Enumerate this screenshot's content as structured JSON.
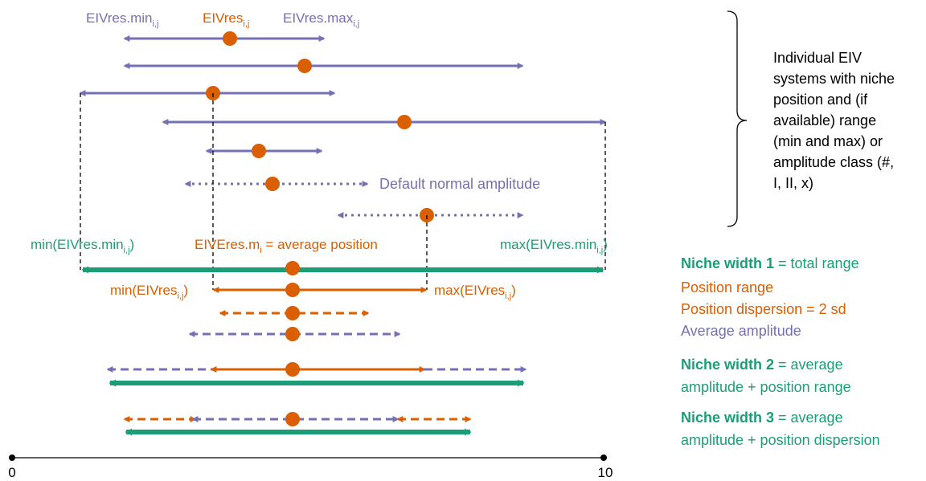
{
  "colors": {
    "purple": "#7570b3",
    "orange": "#d95f02",
    "green": "#1b9e77",
    "black": "#000000",
    "white": "#ffffff"
  },
  "labels": {
    "eiv_min_base": "EIVres.min",
    "eiv_min_sub": "i,j",
    "eiv_pos_base": "EIVres",
    "eiv_pos_sub": "i,j",
    "eiv_max_base": "EIVres.max",
    "eiv_max_sub": "i,j",
    "default_amplitude": "Default normal amplitude",
    "min_total_base": "min(EIVres.min",
    "min_total_sub": "i,j",
    "min_total_end": ")",
    "avg_base": "EIVEres.m",
    "avg_sub": "i",
    "avg_end": " = average position",
    "max_total_base": "max(EIVres.min",
    "max_total_sub": "i,j",
    "max_total_end": ")",
    "min_pos_base": "min(EIVres",
    "min_pos_sub": "i,j",
    "min_pos_end": ")",
    "max_pos_base": "max(EIVres",
    "max_pos_sub": "i,j",
    "max_pos_end": ")"
  },
  "brace_text": [
    "Individual EIV",
    "systems with niche",
    "position and (if",
    "available) range",
    "(min and max) or",
    "amplitude class (#,",
    "I, II, x)"
  ],
  "legend": {
    "nw1_bold": "Niche width 1",
    "nw1_rest": " = total range",
    "position_range": "Position range",
    "position_dispersion": "Position dispersion = 2 sd",
    "average_amplitude": "Average amplitude",
    "nw2_bold": "Niche width 2",
    "nw2_rest_line1": " = average",
    "nw2_line2": "amplitude + position range",
    "nw3_bold": "Niche width 3",
    "nw3_rest_line1": " = average",
    "nw3_line2": "amplitude + position dispersion"
  },
  "axis": {
    "min_label": "0",
    "max_label": "10",
    "min_value": 0,
    "max_value": 10
  }
}
